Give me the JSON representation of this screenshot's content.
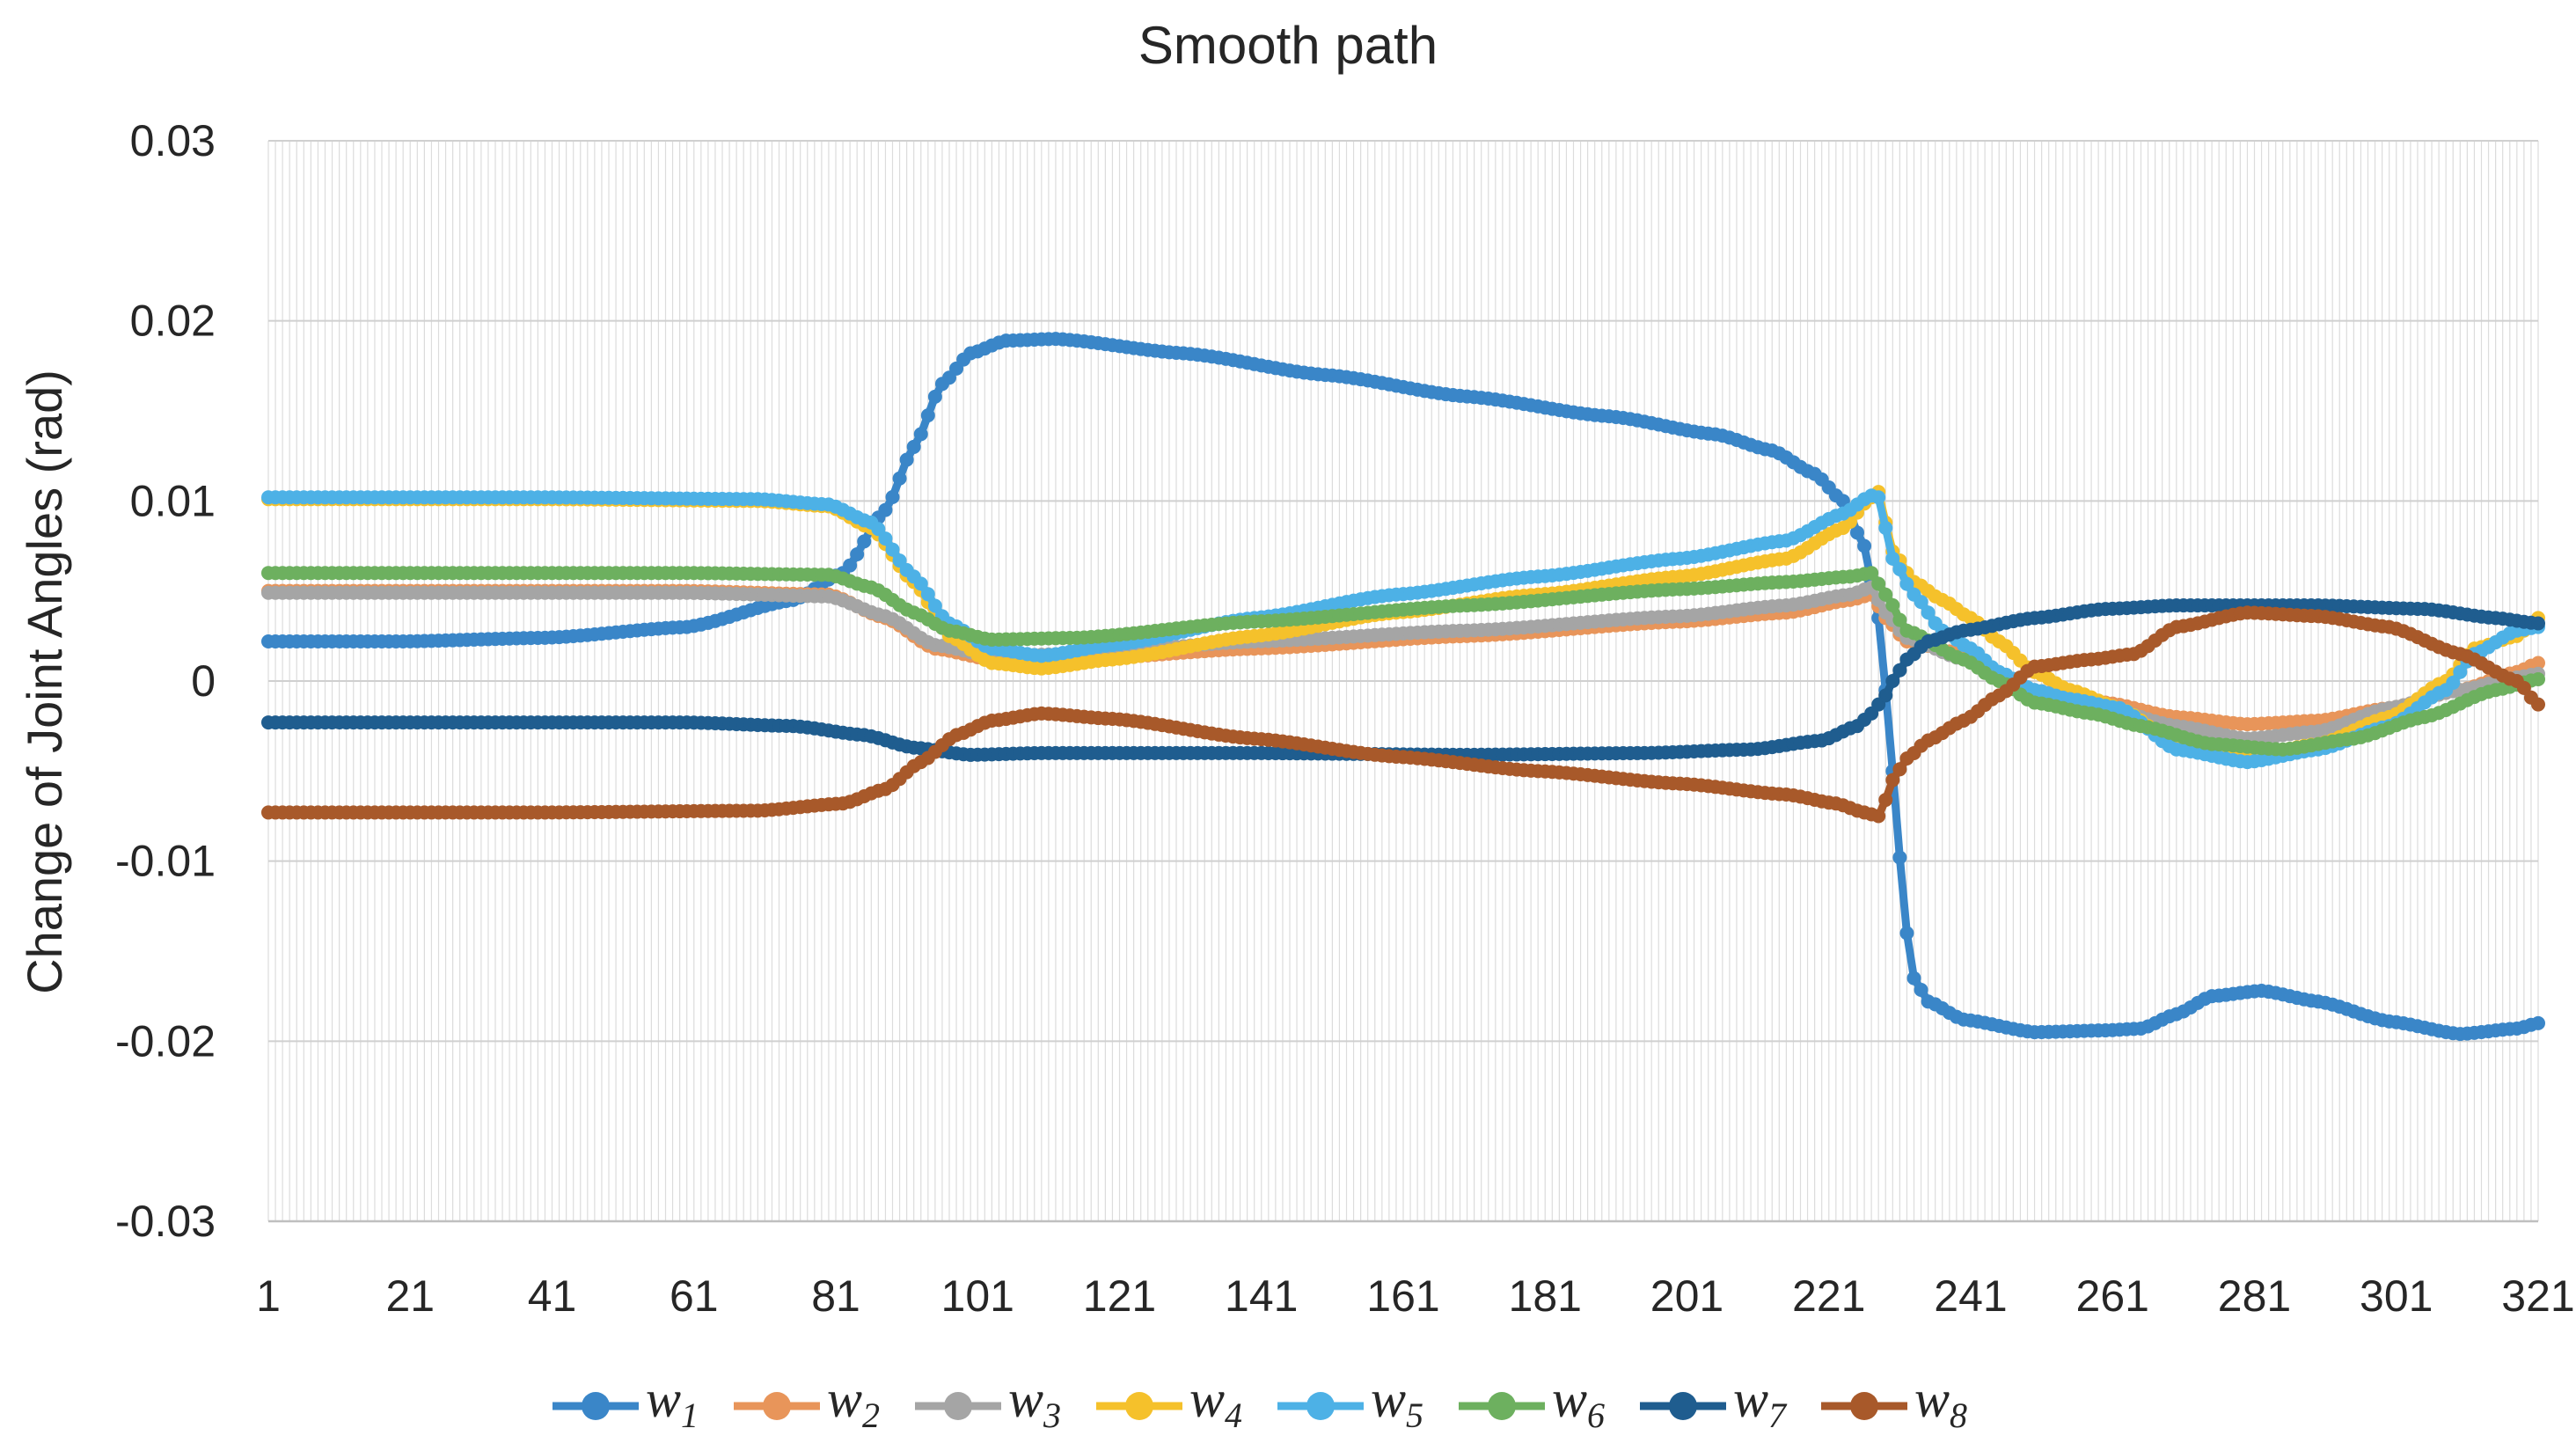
{
  "chart_data": {
    "type": "line",
    "title": "Smooth path",
    "xlabel": "",
    "ylabel": "Change of Joint Angles (rad)",
    "xlim": [
      1,
      321
    ],
    "ylim": [
      -0.03,
      0.03
    ],
    "x_ticks": [
      "1",
      "21",
      "41",
      "61",
      "81",
      "101",
      "121",
      "141",
      "161",
      "181",
      "201",
      "221",
      "241",
      "261",
      "281",
      "301",
      "321"
    ],
    "y_ticks": [
      "0.03",
      "0.02",
      "0.01",
      "0",
      "-0.01",
      "-0.02",
      "-0.03"
    ],
    "y_tick_values": [
      0.03,
      0.02,
      0.01,
      0,
      -0.01,
      -0.02,
      -0.03
    ],
    "grid": "vertical minor and horizontal major",
    "legend_position": "bottom",
    "series": [
      {
        "name": "w1",
        "symbol": "w",
        "subscript": "1",
        "color": "#3a86c8",
        "points": [
          [
            1,
            0.0022
          ],
          [
            20,
            0.0022
          ],
          [
            40,
            0.0024
          ],
          [
            60,
            0.003
          ],
          [
            75,
            0.0045
          ],
          [
            82,
            0.006
          ],
          [
            88,
            0.0095
          ],
          [
            92,
            0.013
          ],
          [
            96,
            0.0165
          ],
          [
            100,
            0.0182
          ],
          [
            105,
            0.0189
          ],
          [
            112,
            0.019
          ],
          [
            130,
            0.0182
          ],
          [
            150,
            0.017
          ],
          [
            170,
            0.0158
          ],
          [
            190,
            0.0147
          ],
          [
            205,
            0.0137
          ],
          [
            213,
            0.0128
          ],
          [
            219,
            0.0115
          ],
          [
            223,
            0.01
          ],
          [
            226,
            0.0075
          ],
          [
            228,
            0.0035
          ],
          [
            229,
            -0.0005
          ],
          [
            230,
            -0.005
          ],
          [
            231,
            -0.0098
          ],
          [
            232,
            -0.014
          ],
          [
            233,
            -0.0165
          ],
          [
            235,
            -0.0178
          ],
          [
            240,
            -0.0188
          ],
          [
            250,
            -0.0195
          ],
          [
            260,
            -0.0194
          ],
          [
            265,
            -0.0193
          ],
          [
            270,
            -0.0185
          ],
          [
            275,
            -0.0175
          ],
          [
            282,
            -0.0172
          ],
          [
            290,
            -0.0178
          ],
          [
            300,
            -0.0189
          ],
          [
            310,
            -0.0196
          ],
          [
            318,
            -0.0193
          ],
          [
            321,
            -0.019
          ]
        ]
      },
      {
        "name": "w2",
        "symbol": "w",
        "subscript": "2",
        "color": "#e8955a",
        "points": [
          [
            1,
            0.005
          ],
          [
            60,
            0.005
          ],
          [
            80,
            0.0048
          ],
          [
            88,
            0.0035
          ],
          [
            95,
            0.0018
          ],
          [
            103,
            0.0012
          ],
          [
            115,
            0.0012
          ],
          [
            140,
            0.0018
          ],
          [
            170,
            0.0025
          ],
          [
            200,
            0.0033
          ],
          [
            215,
            0.0038
          ],
          [
            224,
            0.0045
          ],
          [
            227,
            0.0048
          ],
          [
            229,
            0.0035
          ],
          [
            232,
            0.0022
          ],
          [
            240,
            0.0015
          ],
          [
            250,
            -0.0008
          ],
          [
            260,
            -0.0012
          ],
          [
            270,
            -0.002
          ],
          [
            280,
            -0.0024
          ],
          [
            290,
            -0.0022
          ],
          [
            300,
            -0.0015
          ],
          [
            310,
            -0.0005
          ],
          [
            318,
            0.0005
          ],
          [
            321,
            0.001
          ]
        ]
      },
      {
        "name": "w3",
        "symbol": "w",
        "subscript": "3",
        "color": "#a5a5a5",
        "points": [
          [
            1,
            0.0049
          ],
          [
            60,
            0.0049
          ],
          [
            80,
            0.0047
          ],
          [
            88,
            0.0036
          ],
          [
            95,
            0.002
          ],
          [
            103,
            0.0014
          ],
          [
            115,
            0.0015
          ],
          [
            140,
            0.0022
          ],
          [
            170,
            0.0028
          ],
          [
            200,
            0.0036
          ],
          [
            215,
            0.0042
          ],
          [
            224,
            0.0048
          ],
          [
            227,
            0.0052
          ],
          [
            229,
            0.0038
          ],
          [
            232,
            0.0024
          ],
          [
            240,
            0.0012
          ],
          [
            250,
            -0.0005
          ],
          [
            260,
            -0.0015
          ],
          [
            270,
            -0.0025
          ],
          [
            280,
            -0.0032
          ],
          [
            290,
            -0.0028
          ],
          [
            300,
            -0.0015
          ],
          [
            310,
            -0.0005
          ],
          [
            318,
            0.0002
          ],
          [
            321,
            0.0004
          ]
        ]
      },
      {
        "name": "w4",
        "symbol": "w",
        "subscript": "4",
        "color": "#f5c12b",
        "points": [
          [
            1,
            0.0101
          ],
          [
            40,
            0.0101
          ],
          [
            70,
            0.01
          ],
          [
            80,
            0.0097
          ],
          [
            86,
            0.0085
          ],
          [
            92,
            0.0055
          ],
          [
            97,
            0.0025
          ],
          [
            103,
            0.001
          ],
          [
            110,
            0.0007
          ],
          [
            120,
            0.0012
          ],
          [
            140,
            0.0025
          ],
          [
            160,
            0.0038
          ],
          [
            180,
            0.0048
          ],
          [
            200,
            0.0058
          ],
          [
            215,
            0.0068
          ],
          [
            223,
            0.0085
          ],
          [
            227,
            0.0102
          ],
          [
            228,
            0.0105
          ],
          [
            229,
            0.0088
          ],
          [
            230,
            0.0072
          ],
          [
            233,
            0.0055
          ],
          [
            237,
            0.0045
          ],
          [
            241,
            0.0035
          ],
          [
            245,
            0.0022
          ],
          [
            250,
            0.0005
          ],
          [
            255,
            -0.0005
          ],
          [
            262,
            -0.0015
          ],
          [
            270,
            -0.0035
          ],
          [
            280,
            -0.0042
          ],
          [
            290,
            -0.0035
          ],
          [
            300,
            -0.002
          ],
          [
            308,
            0
          ],
          [
            312,
            0.0018
          ],
          [
            318,
            0.0025
          ],
          [
            321,
            0.0035
          ]
        ]
      },
      {
        "name": "w5",
        "symbol": "w",
        "subscript": "5",
        "color": "#4db1e6",
        "points": [
          [
            1,
            0.0102
          ],
          [
            40,
            0.0102
          ],
          [
            70,
            0.0101
          ],
          [
            80,
            0.0098
          ],
          [
            86,
            0.0088
          ],
          [
            92,
            0.0058
          ],
          [
            97,
            0.0032
          ],
          [
            103,
            0.0018
          ],
          [
            110,
            0.0014
          ],
          [
            120,
            0.002
          ],
          [
            140,
            0.0035
          ],
          [
            160,
            0.0048
          ],
          [
            180,
            0.0058
          ],
          [
            200,
            0.0068
          ],
          [
            215,
            0.0078
          ],
          [
            223,
            0.0093
          ],
          [
            227,
            0.0103
          ],
          [
            228,
            0.0102
          ],
          [
            229,
            0.0085
          ],
          [
            230,
            0.0068
          ],
          [
            233,
            0.0048
          ],
          [
            237,
            0.0028
          ],
          [
            241,
            0.0018
          ],
          [
            245,
            0.0005
          ],
          [
            250,
            -0.0005
          ],
          [
            255,
            -0.001
          ],
          [
            262,
            -0.0015
          ],
          [
            270,
            -0.0038
          ],
          [
            280,
            -0.0045
          ],
          [
            290,
            -0.0038
          ],
          [
            300,
            -0.0025
          ],
          [
            308,
            -0.0005
          ],
          [
            312,
            0.0015
          ],
          [
            318,
            0.0028
          ],
          [
            321,
            0.003
          ]
        ]
      },
      {
        "name": "w6",
        "symbol": "w",
        "subscript": "6",
        "color": "#6db05f",
        "points": [
          [
            1,
            0.006
          ],
          [
            60,
            0.006
          ],
          [
            80,
            0.0059
          ],
          [
            86,
            0.0052
          ],
          [
            92,
            0.0038
          ],
          [
            97,
            0.0028
          ],
          [
            103,
            0.0023
          ],
          [
            115,
            0.0024
          ],
          [
            140,
            0.0033
          ],
          [
            170,
            0.0042
          ],
          [
            200,
            0.0051
          ],
          [
            215,
            0.0055
          ],
          [
            224,
            0.0058
          ],
          [
            227,
            0.006
          ],
          [
            229,
            0.0048
          ],
          [
            232,
            0.0028
          ],
          [
            240,
            0.0012
          ],
          [
            245,
            0
          ],
          [
            250,
            -0.0012
          ],
          [
            258,
            -0.0018
          ],
          [
            265,
            -0.0025
          ],
          [
            275,
            -0.0035
          ],
          [
            285,
            -0.0038
          ],
          [
            295,
            -0.0032
          ],
          [
            305,
            -0.002
          ],
          [
            315,
            -0.0005
          ],
          [
            321,
            0.0001
          ]
        ]
      },
      {
        "name": "w7",
        "symbol": "w",
        "subscript": "7",
        "color": "#1f5d8f",
        "points": [
          [
            1,
            -0.0023
          ],
          [
            60,
            -0.0023
          ],
          [
            75,
            -0.0025
          ],
          [
            85,
            -0.003
          ],
          [
            92,
            -0.0037
          ],
          [
            100,
            -0.0041
          ],
          [
            110,
            -0.004
          ],
          [
            140,
            -0.004
          ],
          [
            170,
            -0.0041
          ],
          [
            195,
            -0.004
          ],
          [
            210,
            -0.0038
          ],
          [
            220,
            -0.0033
          ],
          [
            225,
            -0.0025
          ],
          [
            227,
            -0.0018
          ],
          [
            229,
            -0.0008
          ],
          [
            230,
            0
          ],
          [
            232,
            0.0012
          ],
          [
            235,
            0.0022
          ],
          [
            240,
            0.0028
          ],
          [
            250,
            0.0035
          ],
          [
            260,
            0.004
          ],
          [
            270,
            0.0042
          ],
          [
            290,
            0.0042
          ],
          [
            305,
            0.004
          ],
          [
            315,
            0.0035
          ],
          [
            321,
            0.0032
          ]
        ]
      },
      {
        "name": "w8",
        "symbol": "w",
        "subscript": "8",
        "color": "#a8592a",
        "points": [
          [
            1,
            -0.0073
          ],
          [
            40,
            -0.0073
          ],
          [
            70,
            -0.0072
          ],
          [
            82,
            -0.0068
          ],
          [
            88,
            -0.006
          ],
          [
            93,
            -0.0045
          ],
          [
            98,
            -0.003
          ],
          [
            103,
            -0.0022
          ],
          [
            110,
            -0.0018
          ],
          [
            120,
            -0.0021
          ],
          [
            140,
            -0.0032
          ],
          [
            160,
            -0.0042
          ],
          [
            180,
            -0.005
          ],
          [
            200,
            -0.0057
          ],
          [
            215,
            -0.0063
          ],
          [
            222,
            -0.0068
          ],
          [
            226,
            -0.0073
          ],
          [
            228,
            -0.0075
          ],
          [
            229,
            -0.0066
          ],
          [
            230,
            -0.0055
          ],
          [
            232,
            -0.0043
          ],
          [
            235,
            -0.0033
          ],
          [
            240,
            -0.0022
          ],
          [
            245,
            -0.0008
          ],
          [
            250,
            0.0008
          ],
          [
            258,
            0.0012
          ],
          [
            264,
            0.0015
          ],
          [
            270,
            0.003
          ],
          [
            280,
            0.0038
          ],
          [
            290,
            0.0036
          ],
          [
            300,
            0.003
          ],
          [
            310,
            0.0015
          ],
          [
            318,
            0
          ],
          [
            321,
            -0.0013
          ]
        ]
      }
    ]
  }
}
